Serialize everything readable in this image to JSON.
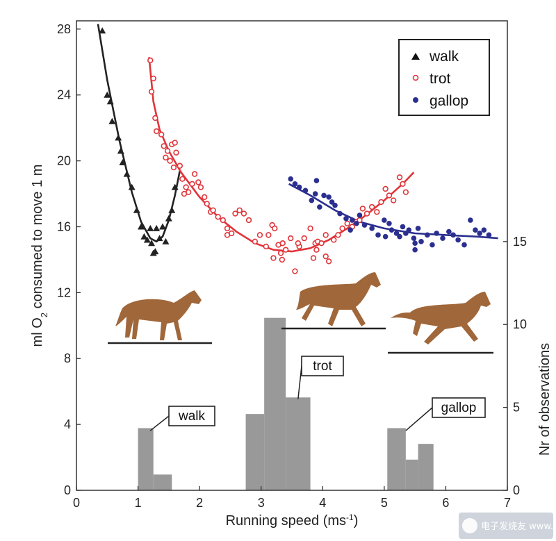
{
  "chart_data": {
    "type": "scatter",
    "xlabel": "Running speed (ms",
    "xlabel_sup": "-1",
    "xlabel_end": ")",
    "ylabel_left": {
      "pre": "ml O",
      "sub": "2",
      "post": " consumed to move 1 m"
    },
    "ylabel_right": "Nr of observations",
    "xlim": [
      0,
      7
    ],
    "ylim_left": [
      0,
      28.5
    ],
    "ylim_right": [
      0,
      15
    ],
    "x_ticks": [
      0,
      1,
      2,
      3,
      4,
      5,
      6,
      7
    ],
    "y_ticks_left": [
      0,
      4,
      8,
      12,
      16,
      20,
      24,
      28
    ],
    "y_ticks_right": [
      0,
      5,
      10,
      15
    ],
    "series": [
      {
        "name": "walk",
        "color": "#222222",
        "marker": "triangle",
        "points": [
          [
            0.42,
            27.9
          ],
          [
            0.5,
            24.0
          ],
          [
            0.55,
            23.6
          ],
          [
            0.58,
            22.4
          ],
          [
            0.68,
            21.4
          ],
          [
            0.72,
            20.6
          ],
          [
            0.75,
            19.9
          ],
          [
            0.82,
            19.2
          ],
          [
            0.9,
            18.4
          ],
          [
            0.98,
            17.0
          ],
          [
            1.05,
            16.0
          ],
          [
            1.1,
            15.4
          ],
          [
            1.15,
            15.2
          ],
          [
            1.2,
            15.9
          ],
          [
            1.22,
            15.0
          ],
          [
            1.28,
            14.5
          ],
          [
            1.3,
            15.9
          ],
          [
            1.35,
            15.3
          ],
          [
            1.4,
            16.0
          ],
          [
            1.45,
            15.1
          ],
          [
            1.5,
            16.5
          ],
          [
            1.55,
            17.0
          ],
          [
            1.6,
            18.4
          ],
          [
            1.25,
            14.4
          ]
        ],
        "fit": [
          [
            0.35,
            28.3
          ],
          [
            0.5,
            24.9
          ],
          [
            0.7,
            21.2
          ],
          [
            0.9,
            18.1
          ],
          [
            1.05,
            16.3
          ],
          [
            1.2,
            15.3
          ],
          [
            1.3,
            15.1
          ],
          [
            1.4,
            15.4
          ],
          [
            1.5,
            16.4
          ],
          [
            1.6,
            17.9
          ],
          [
            1.68,
            19.4
          ]
        ]
      },
      {
        "name": "trot",
        "color": "#e0353a",
        "marker": "open-circle",
        "points": [
          [
            1.2,
            26.1
          ],
          [
            1.25,
            25.0
          ],
          [
            1.22,
            24.2
          ],
          [
            1.28,
            22.6
          ],
          [
            1.3,
            21.8
          ],
          [
            1.38,
            21.6
          ],
          [
            1.42,
            20.9
          ],
          [
            1.48,
            20.6
          ],
          [
            1.55,
            21.0
          ],
          [
            1.6,
            21.1
          ],
          [
            1.62,
            20.5
          ],
          [
            1.52,
            20.0
          ],
          [
            1.45,
            20.2
          ],
          [
            1.58,
            19.6
          ],
          [
            1.68,
            19.7
          ],
          [
            1.72,
            18.9
          ],
          [
            1.78,
            18.4
          ],
          [
            1.75,
            18.0
          ],
          [
            1.82,
            18.1
          ],
          [
            1.88,
            18.6
          ],
          [
            1.92,
            19.2
          ],
          [
            1.98,
            18.7
          ],
          [
            2.02,
            18.4
          ],
          [
            2.08,
            17.8
          ],
          [
            2.12,
            17.4
          ],
          [
            2.18,
            16.9
          ],
          [
            2.22,
            17.0
          ],
          [
            2.3,
            16.6
          ],
          [
            2.38,
            16.4
          ],
          [
            2.45,
            15.9
          ],
          [
            2.52,
            15.6
          ],
          [
            2.58,
            16.8
          ],
          [
            2.65,
            17.0
          ],
          [
            2.72,
            16.8
          ],
          [
            2.8,
            16.4
          ],
          [
            2.9,
            15.1
          ],
          [
            2.98,
            15.5
          ],
          [
            3.08,
            14.8
          ],
          [
            3.12,
            15.5
          ],
          [
            3.18,
            16.1
          ],
          [
            3.22,
            15.9
          ],
          [
            3.28,
            14.9
          ],
          [
            3.32,
            14.4
          ],
          [
            3.34,
            14.0
          ],
          [
            3.35,
            15.0
          ],
          [
            3.4,
            14.6
          ],
          [
            3.48,
            15.3
          ],
          [
            3.55,
            13.3
          ],
          [
            3.62,
            14.8
          ],
          [
            3.7,
            15.3
          ],
          [
            3.8,
            15.9
          ],
          [
            3.85,
            14.1
          ],
          [
            3.88,
            15.0
          ],
          [
            3.92,
            15.1
          ],
          [
            3.98,
            15.0
          ],
          [
            4.05,
            14.2
          ],
          [
            4.1,
            13.9
          ],
          [
            4.05,
            15.5
          ],
          [
            4.18,
            15.2
          ],
          [
            4.25,
            15.5
          ],
          [
            4.32,
            15.9
          ],
          [
            4.4,
            16.2
          ],
          [
            4.48,
            16.0
          ],
          [
            4.55,
            16.3
          ],
          [
            4.65,
            17.1
          ],
          [
            4.72,
            16.8
          ],
          [
            4.8,
            17.2
          ],
          [
            4.88,
            16.9
          ],
          [
            4.95,
            17.5
          ],
          [
            5.02,
            18.3
          ],
          [
            5.08,
            17.9
          ],
          [
            5.15,
            17.6
          ],
          [
            5.25,
            19.0
          ],
          [
            5.3,
            18.6
          ],
          [
            5.35,
            18.1
          ],
          [
            4.6,
            16.4
          ],
          [
            3.9,
            14.6
          ],
          [
            3.6,
            15.0
          ],
          [
            2.45,
            15.5
          ],
          [
            3.2,
            14.1
          ]
        ],
        "fit": [
          [
            1.18,
            26.3
          ],
          [
            1.25,
            23.6
          ],
          [
            1.35,
            21.9
          ],
          [
            1.5,
            20.6
          ],
          [
            1.7,
            19.3
          ],
          [
            2.0,
            17.8
          ],
          [
            2.3,
            16.6
          ],
          [
            2.6,
            15.7
          ],
          [
            2.9,
            15.0
          ],
          [
            3.2,
            14.6
          ],
          [
            3.5,
            14.5
          ],
          [
            3.8,
            14.7
          ],
          [
            4.1,
            15.2
          ],
          [
            4.4,
            15.9
          ],
          [
            4.7,
            16.7
          ],
          [
            5.0,
            17.6
          ],
          [
            5.3,
            18.6
          ],
          [
            5.48,
            19.3
          ]
        ]
      },
      {
        "name": "gallop",
        "color": "#2b2f8f",
        "marker": "filled-circle",
        "points": [
          [
            3.48,
            18.9
          ],
          [
            3.55,
            18.6
          ],
          [
            3.62,
            18.4
          ],
          [
            3.72,
            18.2
          ],
          [
            3.82,
            17.6
          ],
          [
            3.88,
            18.0
          ],
          [
            3.95,
            17.2
          ],
          [
            4.02,
            17.9
          ],
          [
            4.1,
            17.8
          ],
          [
            4.15,
            17.5
          ],
          [
            4.2,
            17.3
          ],
          [
            4.28,
            16.8
          ],
          [
            4.38,
            16.5
          ],
          [
            4.48,
            16.4
          ],
          [
            4.55,
            16.2
          ],
          [
            4.6,
            16.7
          ],
          [
            4.68,
            16.1
          ],
          [
            4.8,
            15.9
          ],
          [
            4.9,
            15.5
          ],
          [
            5.0,
            16.4
          ],
          [
            5.08,
            16.2
          ],
          [
            5.12,
            15.8
          ],
          [
            5.2,
            15.6
          ],
          [
            5.25,
            15.4
          ],
          [
            5.3,
            16.0
          ],
          [
            5.35,
            15.6
          ],
          [
            5.4,
            15.8
          ],
          [
            5.48,
            15.3
          ],
          [
            5.55,
            15.9
          ],
          [
            5.6,
            15.1
          ],
          [
            5.7,
            15.5
          ],
          [
            5.78,
            14.9
          ],
          [
            5.85,
            15.6
          ],
          [
            5.95,
            15.3
          ],
          [
            6.05,
            15.7
          ],
          [
            6.12,
            15.5
          ],
          [
            6.2,
            15.2
          ],
          [
            6.3,
            14.9
          ],
          [
            6.4,
            16.4
          ],
          [
            6.48,
            15.8
          ],
          [
            6.55,
            15.6
          ],
          [
            6.62,
            15.8
          ],
          [
            6.7,
            15.5
          ],
          [
            5.5,
            15.0
          ],
          [
            5.5,
            14.6
          ],
          [
            3.9,
            18.8
          ],
          [
            4.45,
            15.8
          ],
          [
            5.02,
            15.4
          ]
        ],
        "fit": [
          [
            3.45,
            18.6
          ],
          [
            3.8,
            17.9
          ],
          [
            4.2,
            17.0
          ],
          [
            4.6,
            16.3
          ],
          [
            5.0,
            15.9
          ],
          [
            5.5,
            15.6
          ],
          [
            6.0,
            15.5
          ],
          [
            6.5,
            15.4
          ],
          [
            6.85,
            15.3
          ]
        ]
      }
    ],
    "histogram": {
      "axis": "right",
      "color": "#999999",
      "bars": [
        {
          "x0": 1.0,
          "x1": 1.25,
          "count": 3.75
        },
        {
          "x0": 1.25,
          "x1": 1.55,
          "count": 0.95
        },
        {
          "x0": 2.75,
          "x1": 3.05,
          "count": 4.6
        },
        {
          "x0": 3.05,
          "x1": 3.4,
          "count": 10.4
        },
        {
          "x0": 3.4,
          "x1": 3.8,
          "count": 5.6
        },
        {
          "x0": 5.05,
          "x1": 5.35,
          "count": 3.75
        },
        {
          "x0": 5.35,
          "x1": 5.55,
          "count": 1.85
        },
        {
          "x0": 5.55,
          "x1": 5.8,
          "count": 2.8
        }
      ]
    },
    "callouts": [
      {
        "label": "walk",
        "bar_x": 1.2,
        "bar_y": 3.6
      },
      {
        "label": "trot",
        "bar_x": 3.6,
        "bar_y": 5.5
      },
      {
        "label": "gallop",
        "bar_x": 5.35,
        "bar_y": 3.6
      }
    ],
    "legend": {
      "position": "top-right",
      "entries": [
        "walk",
        "trot",
        "gallop"
      ]
    }
  },
  "watermark": "电子发烧友 www.elecfans.com"
}
